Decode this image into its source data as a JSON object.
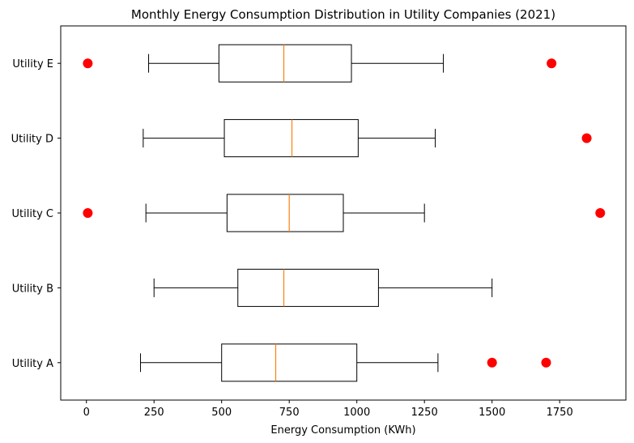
{
  "chart_data": {
    "type": "box",
    "orientation": "horizontal",
    "title": "Monthly Energy Consumption Distribution in Utility Companies (2021)",
    "xlabel": "Energy Consumption (KWh)",
    "ylabel": "",
    "xlim": [
      -95,
      1995
    ],
    "xticks": [
      0,
      250,
      500,
      750,
      1000,
      1250,
      1500,
      1750
    ],
    "categories": [
      "Utility A",
      "Utility B",
      "Utility C",
      "Utility D",
      "Utility E"
    ],
    "boxes": [
      {
        "name": "Utility A",
        "whisker_low": 200,
        "q1": 500,
        "median": 700,
        "q3": 1000,
        "whisker_high": 1300,
        "outliers": [
          1500,
          1700
        ]
      },
      {
        "name": "Utility B",
        "whisker_low": 250,
        "q1": 560,
        "median": 730,
        "q3": 1080,
        "whisker_high": 1500,
        "outliers": []
      },
      {
        "name": "Utility C",
        "whisker_low": 220,
        "q1": 520,
        "median": 750,
        "q3": 950,
        "whisker_high": 1250,
        "outliers": [
          5,
          1900
        ]
      },
      {
        "name": "Utility D",
        "whisker_low": 210,
        "q1": 510,
        "median": 760,
        "q3": 1005,
        "whisker_high": 1290,
        "outliers": [
          1850
        ]
      },
      {
        "name": "Utility E",
        "whisker_low": 230,
        "q1": 490,
        "median": 730,
        "q3": 980,
        "whisker_high": 1320,
        "outliers": [
          5,
          1720
        ]
      }
    ],
    "colors": {
      "box": "#000000",
      "median": "#ff7f0e",
      "outlier": "#ff0000"
    },
    "grid": false,
    "legend": "none"
  }
}
